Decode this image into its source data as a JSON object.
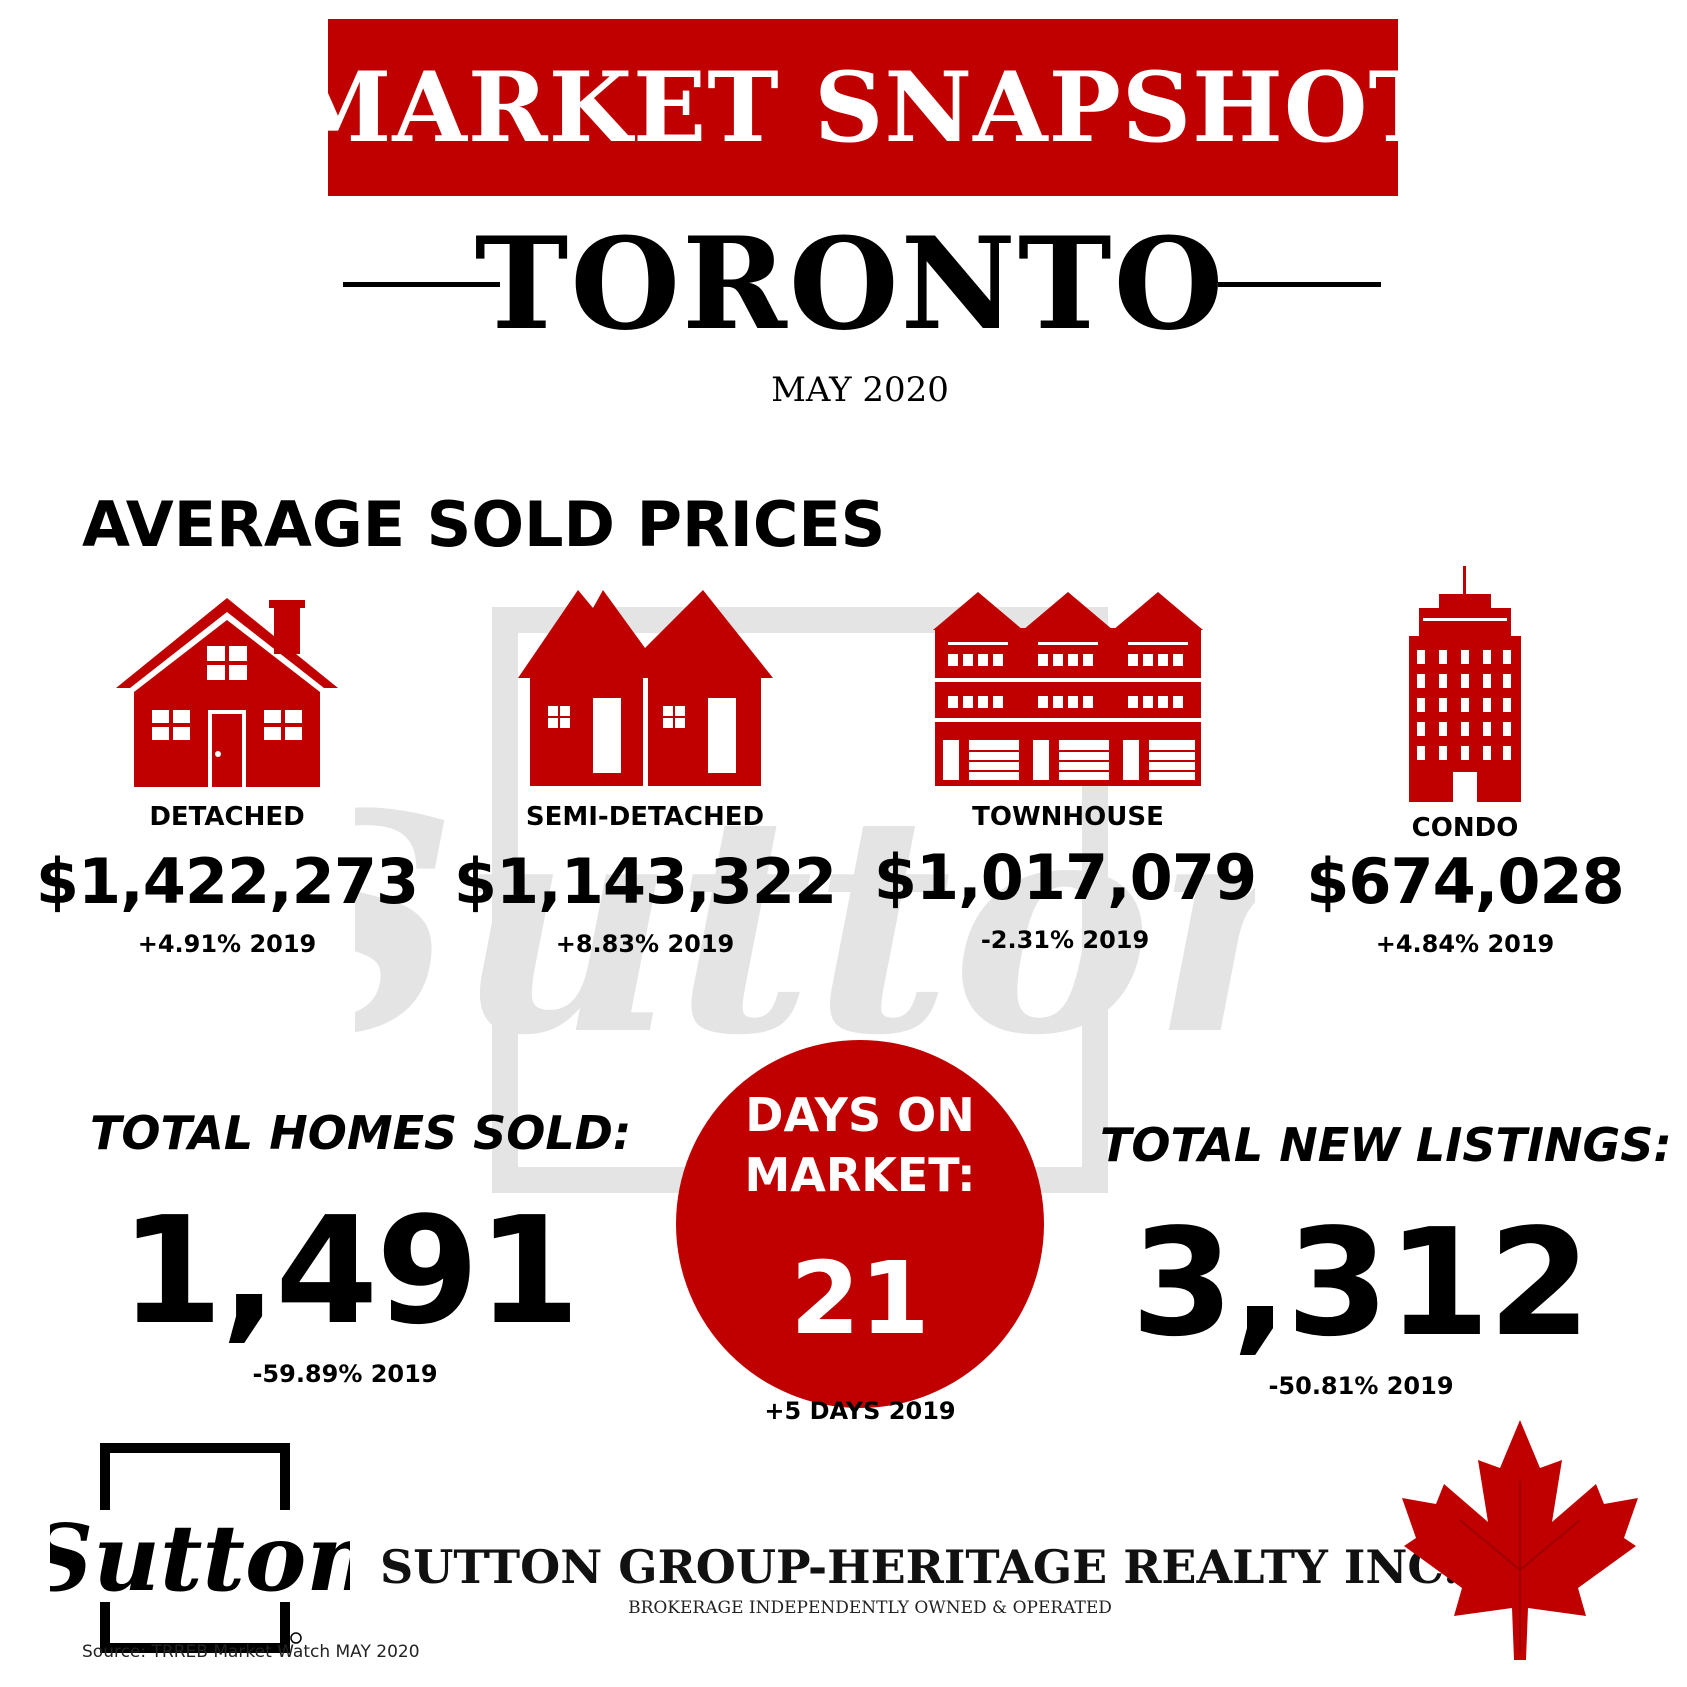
{
  "header": {
    "title": "MARKET SNAPSHOT",
    "city": "TORONTO",
    "period": "MAY 2020"
  },
  "average_prices": {
    "heading": "AVERAGE SOLD PRICES",
    "items": [
      {
        "label": "DETACHED",
        "price": "$1,422,273",
        "change": "+4.91% 2019",
        "icon": "house-icon"
      },
      {
        "label": "SEMI-DETACHED",
        "price": "$1,143,322",
        "change": "+8.83% 2019",
        "icon": "semi-detached-icon"
      },
      {
        "label": "TOWNHOUSE",
        "price": "$1,017,079",
        "change": "-2.31% 2019",
        "icon": "townhouse-icon"
      },
      {
        "label": "CONDO",
        "price": "$674,028",
        "change": "+4.84% 2019",
        "icon": "condo-tower-icon"
      }
    ]
  },
  "stats": {
    "homes_sold": {
      "label": "TOTAL HOMES SOLD:",
      "value": "1,491",
      "change": "-59.89% 2019"
    },
    "days_on_market": {
      "label_line1": "DAYS ON",
      "label_line2": "MARKET:",
      "value": "21",
      "change": "+5 DAYS 2019"
    },
    "new_listings": {
      "label": "TOTAL NEW LISTINGS:",
      "value": "3,312",
      "change": "-50.81% 2019"
    }
  },
  "footer": {
    "logo_text": "Sutton",
    "brokerage": "SUTTON GROUP-HERITAGE REALTY INC.",
    "tagline": "BROKERAGE INDEPENDENTLY OWNED & OPERATED",
    "source": "Source: TRREB Market Watch MAY 2020"
  },
  "colors": {
    "accent": "#c00000",
    "text": "#000000",
    "background": "#ffffff"
  }
}
